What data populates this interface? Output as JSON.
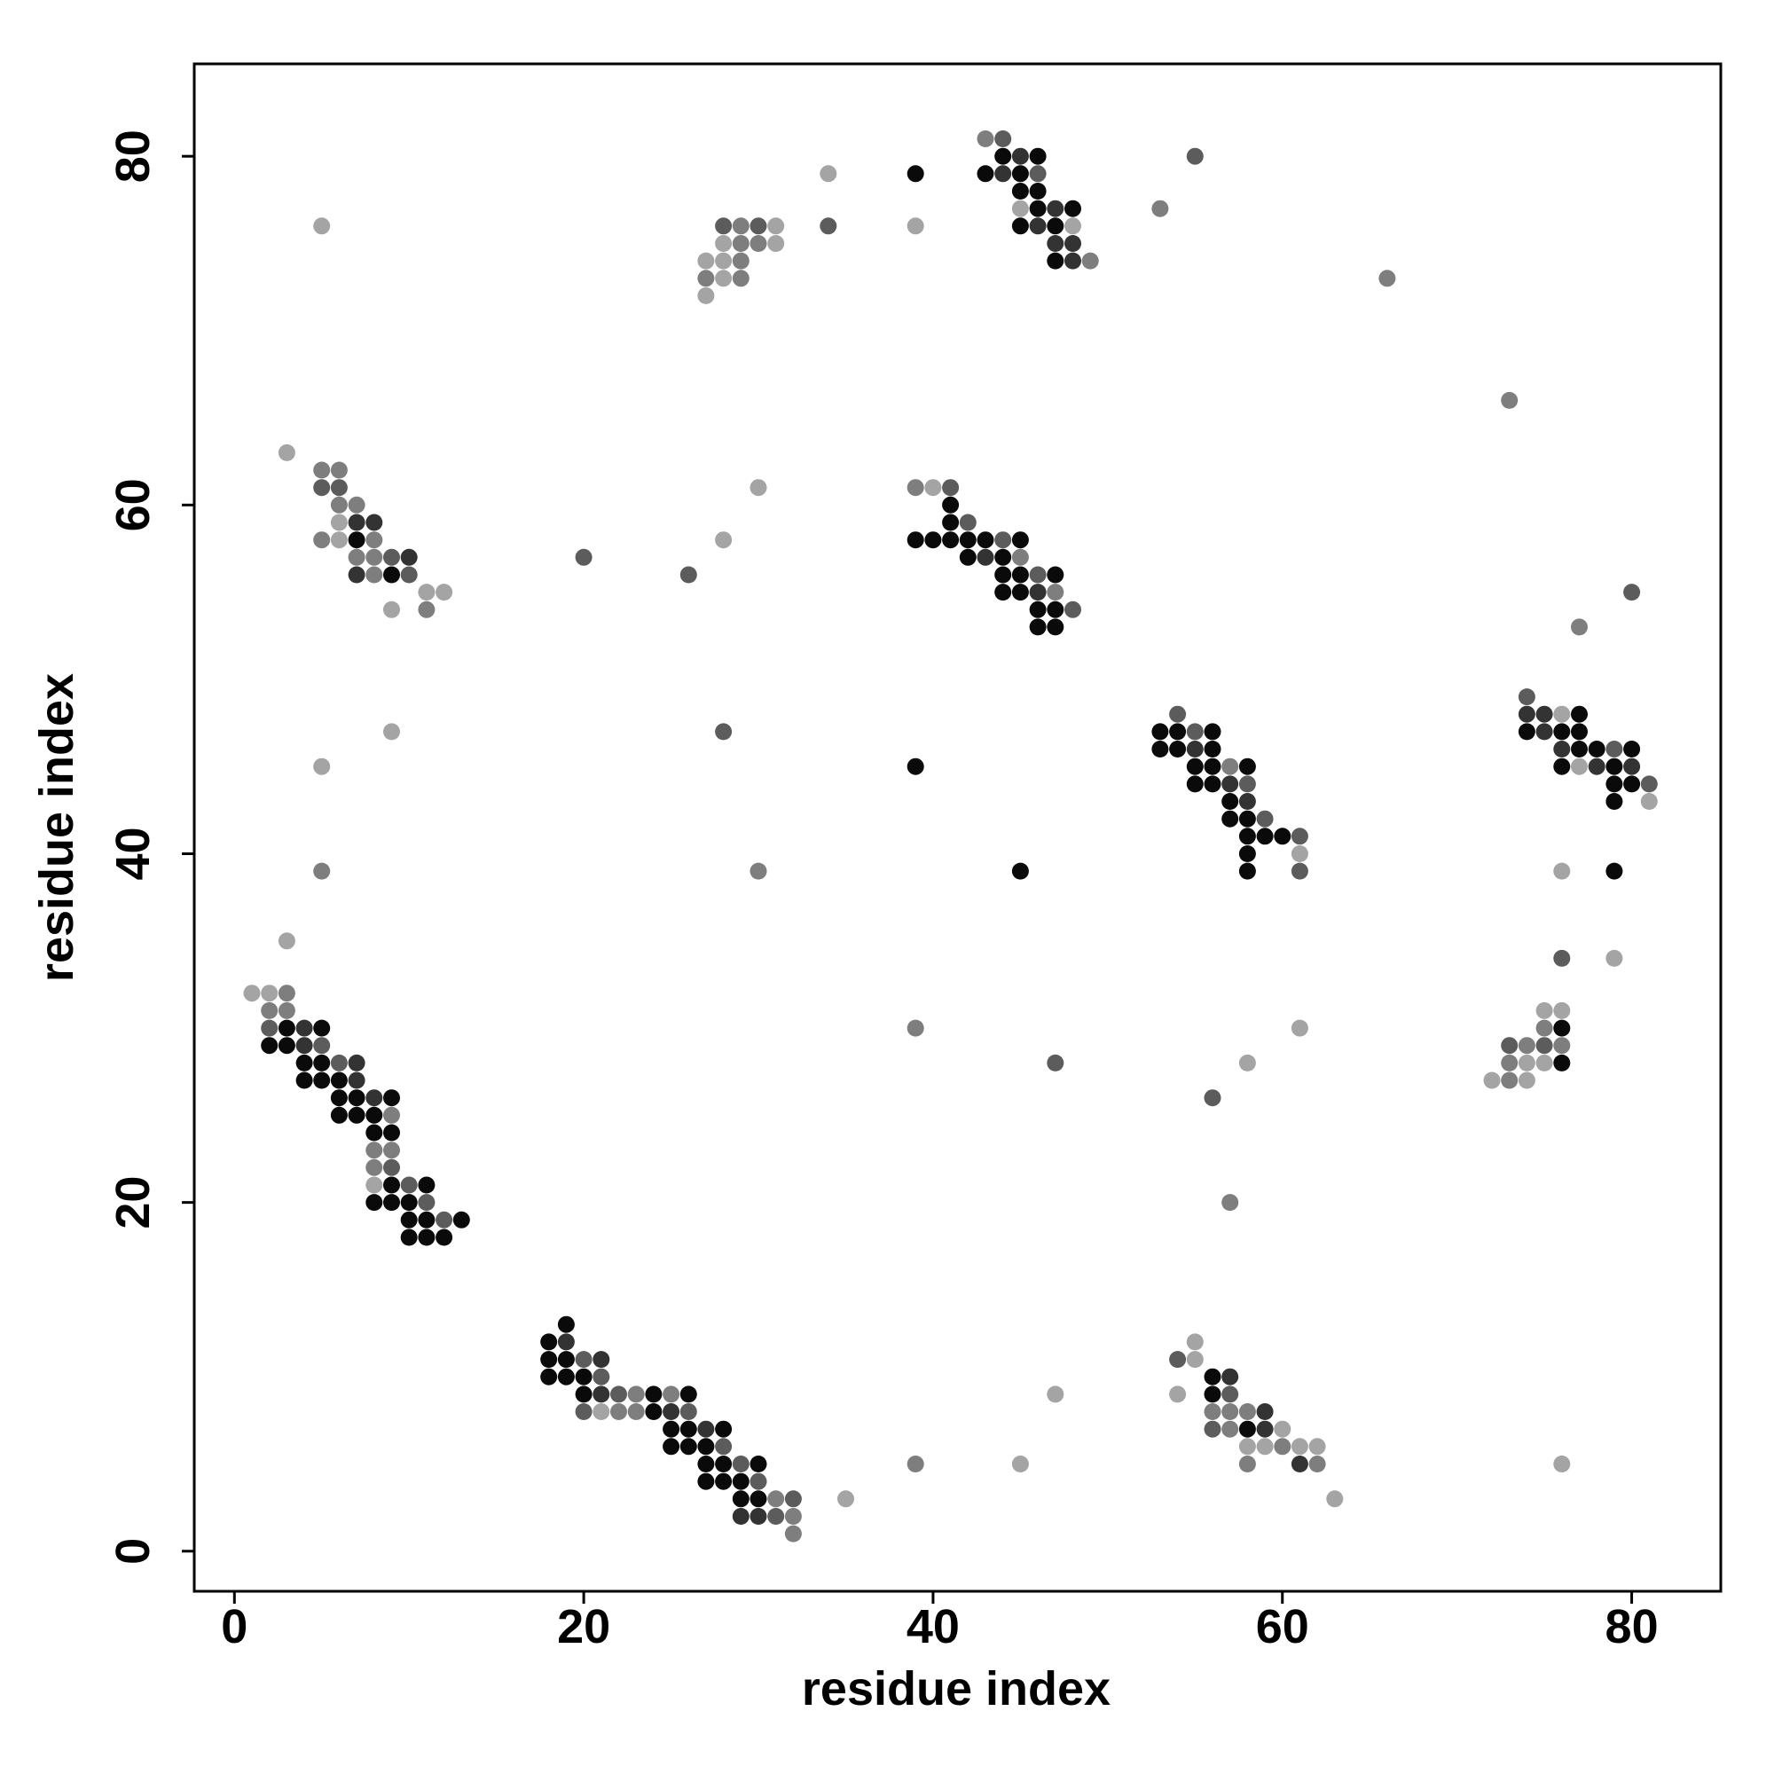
{
  "chart_data": {
    "type": "scatter",
    "title": "",
    "xlabel": "residue index",
    "ylabel": "residue index",
    "xlim": [
      -2.3,
      85.1
    ],
    "ylim": [
      -2.3,
      85.3
    ],
    "xticks": [
      0,
      20,
      40,
      60,
      80
    ],
    "yticks": [
      0,
      20,
      40,
      60,
      80
    ],
    "grid": false,
    "legend": "none",
    "shade_colors": {
      "1": "#a4a4a4",
      "2": "#7e7e7e",
      "3": "#5c5c5c",
      "4": "#333333",
      "5": "#0a0a0a"
    },
    "points": [
      [
        5,
        76,
        1
      ],
      [
        27,
        72,
        1
      ],
      [
        27,
        73,
        2
      ],
      [
        28,
        73,
        1
      ],
      [
        29,
        73,
        2
      ],
      [
        27,
        74,
        1
      ],
      [
        28,
        74,
        1
      ],
      [
        29,
        74,
        2
      ],
      [
        28,
        75,
        1
      ],
      [
        29,
        75,
        2
      ],
      [
        30,
        75,
        2
      ],
      [
        31,
        75,
        1
      ],
      [
        28,
        76,
        3
      ],
      [
        29,
        76,
        2
      ],
      [
        30,
        76,
        3
      ],
      [
        31,
        76,
        1
      ],
      [
        34,
        79,
        1
      ],
      [
        34,
        76,
        3
      ],
      [
        39,
        79,
        5
      ],
      [
        39,
        76,
        1
      ],
      [
        43,
        81,
        2
      ],
      [
        44,
        81,
        3
      ],
      [
        43,
        79,
        5
      ],
      [
        44,
        79,
        4
      ],
      [
        45,
        79,
        5
      ],
      [
        46,
        79,
        3
      ],
      [
        44,
        80,
        5
      ],
      [
        45,
        80,
        4
      ],
      [
        46,
        80,
        5
      ],
      [
        45,
        78,
        5
      ],
      [
        46,
        78,
        5
      ],
      [
        45,
        77,
        1
      ],
      [
        46,
        77,
        5
      ],
      [
        47,
        77,
        4
      ],
      [
        48,
        77,
        5
      ],
      [
        45,
        76,
        5
      ],
      [
        46,
        76,
        4
      ],
      [
        47,
        76,
        5
      ],
      [
        48,
        76,
        1
      ],
      [
        47,
        75,
        4
      ],
      [
        48,
        75,
        4
      ],
      [
        47,
        74,
        5
      ],
      [
        48,
        74,
        4
      ],
      [
        49,
        74,
        2
      ],
      [
        53,
        77,
        2
      ],
      [
        55,
        80,
        3
      ],
      [
        66,
        73,
        2
      ],
      [
        73,
        66,
        2
      ],
      [
        3,
        63,
        1
      ],
      [
        5,
        62,
        2
      ],
      [
        6,
        62,
        2
      ],
      [
        5,
        61,
        3
      ],
      [
        6,
        61,
        3
      ],
      [
        6,
        60,
        2
      ],
      [
        7,
        60,
        2
      ],
      [
        6,
        59,
        1
      ],
      [
        7,
        59,
        4
      ],
      [
        8,
        59,
        4
      ],
      [
        5,
        58,
        2
      ],
      [
        6,
        58,
        1
      ],
      [
        7,
        58,
        5
      ],
      [
        8,
        58,
        2
      ],
      [
        7,
        57,
        2
      ],
      [
        8,
        57,
        2
      ],
      [
        9,
        57,
        3
      ],
      [
        10,
        57,
        4
      ],
      [
        7,
        56,
        4
      ],
      [
        8,
        56,
        2
      ],
      [
        9,
        56,
        5
      ],
      [
        10,
        56,
        3
      ],
      [
        11,
        55,
        1
      ],
      [
        12,
        55,
        1
      ],
      [
        9,
        54,
        1
      ],
      [
        11,
        54,
        2
      ],
      [
        30,
        61,
        1
      ],
      [
        28,
        58,
        1
      ],
      [
        20,
        57,
        3
      ],
      [
        26,
        56,
        3
      ],
      [
        39,
        61,
        2
      ],
      [
        40,
        61,
        1
      ],
      [
        41,
        61,
        3
      ],
      [
        41,
        60,
        5
      ],
      [
        41,
        59,
        5
      ],
      [
        42,
        59,
        3
      ],
      [
        39,
        58,
        5
      ],
      [
        40,
        58,
        5
      ],
      [
        41,
        58,
        5
      ],
      [
        42,
        58,
        5
      ],
      [
        43,
        58,
        5
      ],
      [
        44,
        58,
        3
      ],
      [
        45,
        58,
        5
      ],
      [
        42,
        57,
        5
      ],
      [
        43,
        57,
        4
      ],
      [
        44,
        57,
        5
      ],
      [
        45,
        57,
        2
      ],
      [
        44,
        56,
        5
      ],
      [
        45,
        56,
        5
      ],
      [
        46,
        56,
        3
      ],
      [
        47,
        56,
        5
      ],
      [
        44,
        55,
        5
      ],
      [
        45,
        55,
        5
      ],
      [
        46,
        55,
        4
      ],
      [
        47,
        55,
        2
      ],
      [
        46,
        54,
        5
      ],
      [
        47,
        54,
        5
      ],
      [
        48,
        54,
        3
      ],
      [
        46,
        53,
        5
      ],
      [
        47,
        53,
        5
      ],
      [
        80,
        55,
        3
      ],
      [
        77,
        53,
        2
      ],
      [
        5,
        45,
        1
      ],
      [
        9,
        47,
        1
      ],
      [
        28,
        47,
        3
      ],
      [
        39,
        45,
        5
      ],
      [
        54,
        48,
        3
      ],
      [
        53,
        47,
        5
      ],
      [
        54,
        47,
        5
      ],
      [
        55,
        47,
        3
      ],
      [
        56,
        47,
        5
      ],
      [
        53,
        46,
        5
      ],
      [
        54,
        46,
        5
      ],
      [
        55,
        46,
        4
      ],
      [
        56,
        46,
        5
      ],
      [
        55,
        45,
        5
      ],
      [
        56,
        45,
        5
      ],
      [
        57,
        45,
        2
      ],
      [
        58,
        45,
        5
      ],
      [
        55,
        44,
        5
      ],
      [
        56,
        44,
        5
      ],
      [
        57,
        44,
        4
      ],
      [
        58,
        44,
        3
      ],
      [
        57,
        43,
        5
      ],
      [
        58,
        43,
        4
      ],
      [
        57,
        42,
        5
      ],
      [
        58,
        42,
        5
      ],
      [
        59,
        42,
        3
      ],
      [
        58,
        41,
        5
      ],
      [
        59,
        41,
        5
      ],
      [
        60,
        41,
        5
      ],
      [
        61,
        41,
        3
      ],
      [
        58,
        40,
        5
      ],
      [
        61,
        40,
        1
      ],
      [
        58,
        39,
        5
      ],
      [
        61,
        39,
        3
      ],
      [
        74,
        49,
        3
      ],
      [
        74,
        48,
        4
      ],
      [
        75,
        48,
        4
      ],
      [
        76,
        48,
        1
      ],
      [
        77,
        48,
        5
      ],
      [
        74,
        47,
        5
      ],
      [
        75,
        47,
        4
      ],
      [
        76,
        47,
        5
      ],
      [
        77,
        47,
        5
      ],
      [
        76,
        46,
        4
      ],
      [
        77,
        46,
        5
      ],
      [
        78,
        46,
        5
      ],
      [
        79,
        46,
        3
      ],
      [
        80,
        46,
        5
      ],
      [
        76,
        45,
        5
      ],
      [
        77,
        45,
        1
      ],
      [
        78,
        45,
        4
      ],
      [
        79,
        45,
        5
      ],
      [
        80,
        45,
        4
      ],
      [
        79,
        44,
        5
      ],
      [
        80,
        44,
        5
      ],
      [
        81,
        44,
        3
      ],
      [
        79,
        43,
        5
      ],
      [
        81,
        43,
        1
      ],
      [
        5,
        39,
        2
      ],
      [
        30,
        39,
        2
      ],
      [
        45,
        39,
        5
      ],
      [
        76,
        39,
        1
      ],
      [
        79,
        39,
        5
      ],
      [
        3,
        35,
        1
      ],
      [
        76,
        34,
        3
      ],
      [
        79,
        34,
        1
      ],
      [
        1,
        32,
        1
      ],
      [
        2,
        32,
        1
      ],
      [
        3,
        32,
        2
      ],
      [
        2,
        31,
        2
      ],
      [
        3,
        31,
        2
      ],
      [
        2,
        30,
        3
      ],
      [
        3,
        30,
        5
      ],
      [
        4,
        30,
        4
      ],
      [
        5,
        30,
        5
      ],
      [
        2,
        29,
        5
      ],
      [
        3,
        29,
        5
      ],
      [
        4,
        29,
        4
      ],
      [
        5,
        29,
        3
      ],
      [
        4,
        28,
        5
      ],
      [
        5,
        28,
        5
      ],
      [
        6,
        28,
        3
      ],
      [
        7,
        28,
        4
      ],
      [
        4,
        27,
        5
      ],
      [
        5,
        27,
        5
      ],
      [
        6,
        27,
        5
      ],
      [
        7,
        27,
        4
      ],
      [
        6,
        26,
        5
      ],
      [
        7,
        26,
        5
      ],
      [
        8,
        26,
        4
      ],
      [
        9,
        26,
        5
      ],
      [
        6,
        25,
        5
      ],
      [
        7,
        25,
        5
      ],
      [
        8,
        25,
        5
      ],
      [
        9,
        25,
        2
      ],
      [
        8,
        24,
        5
      ],
      [
        9,
        24,
        5
      ],
      [
        8,
        23,
        2
      ],
      [
        9,
        23,
        2
      ],
      [
        8,
        22,
        2
      ],
      [
        9,
        22,
        3
      ],
      [
        8,
        21,
        1
      ],
      [
        9,
        21,
        5
      ],
      [
        10,
        21,
        3
      ],
      [
        11,
        21,
        5
      ],
      [
        8,
        20,
        5
      ],
      [
        9,
        20,
        5
      ],
      [
        10,
        20,
        5
      ],
      [
        11,
        20,
        3
      ],
      [
        10,
        19,
        5
      ],
      [
        11,
        19,
        5
      ],
      [
        12,
        19,
        3
      ],
      [
        13,
        19,
        5
      ],
      [
        10,
        18,
        5
      ],
      [
        11,
        18,
        5
      ],
      [
        12,
        18,
        5
      ],
      [
        39,
        30,
        2
      ],
      [
        47,
        28,
        3
      ],
      [
        61,
        30,
        1
      ],
      [
        58,
        28,
        1
      ],
      [
        56,
        26,
        3
      ],
      [
        57,
        20,
        2
      ],
      [
        75,
        31,
        1
      ],
      [
        76,
        31,
        1
      ],
      [
        73,
        29,
        3
      ],
      [
        74,
        29,
        2
      ],
      [
        75,
        29,
        3
      ],
      [
        76,
        29,
        2
      ],
      [
        75,
        30,
        2
      ],
      [
        76,
        30,
        5
      ],
      [
        73,
        28,
        2
      ],
      [
        74,
        28,
        1
      ],
      [
        75,
        28,
        1
      ],
      [
        76,
        28,
        5
      ],
      [
        72,
        27,
        1
      ],
      [
        73,
        27,
        2
      ],
      [
        74,
        27,
        1
      ],
      [
        18,
        12,
        5
      ],
      [
        19,
        13,
        5
      ],
      [
        19,
        12,
        4
      ],
      [
        18,
        11,
        5
      ],
      [
        19,
        11,
        5
      ],
      [
        20,
        11,
        3
      ],
      [
        21,
        11,
        4
      ],
      [
        18,
        10,
        5
      ],
      [
        19,
        10,
        5
      ],
      [
        20,
        10,
        5
      ],
      [
        21,
        10,
        3
      ],
      [
        20,
        9,
        5
      ],
      [
        21,
        9,
        4
      ],
      [
        22,
        9,
        3
      ],
      [
        23,
        9,
        2
      ],
      [
        24,
        9,
        5
      ],
      [
        25,
        9,
        2
      ],
      [
        26,
        9,
        5
      ],
      [
        20,
        8,
        3
      ],
      [
        21,
        8,
        1
      ],
      [
        22,
        8,
        2
      ],
      [
        23,
        8,
        2
      ],
      [
        24,
        8,
        5
      ],
      [
        25,
        8,
        4
      ],
      [
        26,
        8,
        3
      ],
      [
        25,
        7,
        5
      ],
      [
        26,
        7,
        5
      ],
      [
        27,
        7,
        4
      ],
      [
        28,
        7,
        5
      ],
      [
        25,
        6,
        5
      ],
      [
        26,
        6,
        5
      ],
      [
        27,
        6,
        5
      ],
      [
        28,
        6,
        3
      ],
      [
        27,
        5,
        5
      ],
      [
        28,
        5,
        5
      ],
      [
        29,
        5,
        3
      ],
      [
        30,
        5,
        5
      ],
      [
        27,
        4,
        5
      ],
      [
        28,
        4,
        5
      ],
      [
        29,
        4,
        5
      ],
      [
        30,
        4,
        3
      ],
      [
        29,
        3,
        5
      ],
      [
        30,
        3,
        5
      ],
      [
        31,
        3,
        2
      ],
      [
        32,
        3,
        3
      ],
      [
        29,
        2,
        4
      ],
      [
        30,
        2,
        4
      ],
      [
        31,
        2,
        3
      ],
      [
        32,
        2,
        2
      ],
      [
        32,
        1,
        2
      ],
      [
        35,
        3,
        1
      ],
      [
        39,
        5,
        2
      ],
      [
        45,
        5,
        1
      ],
      [
        47,
        9,
        1
      ],
      [
        54,
        11,
        3
      ],
      [
        55,
        12,
        1
      ],
      [
        55,
        11,
        1
      ],
      [
        54,
        9,
        1
      ],
      [
        56,
        10,
        5
      ],
      [
        57,
        10,
        4
      ],
      [
        56,
        9,
        5
      ],
      [
        57,
        9,
        3
      ],
      [
        56,
        8,
        2
      ],
      [
        57,
        8,
        2
      ],
      [
        58,
        8,
        2
      ],
      [
        59,
        8,
        4
      ],
      [
        56,
        7,
        3
      ],
      [
        57,
        7,
        2
      ],
      [
        58,
        7,
        5
      ],
      [
        59,
        7,
        4
      ],
      [
        60,
        7,
        1
      ],
      [
        58,
        6,
        1
      ],
      [
        59,
        6,
        1
      ],
      [
        60,
        6,
        2
      ],
      [
        61,
        6,
        1
      ],
      [
        62,
        6,
        1
      ],
      [
        58,
        5,
        2
      ],
      [
        61,
        5,
        4
      ],
      [
        62,
        5,
        2
      ],
      [
        63,
        3,
        1
      ],
      [
        76,
        5,
        1
      ]
    ]
  }
}
